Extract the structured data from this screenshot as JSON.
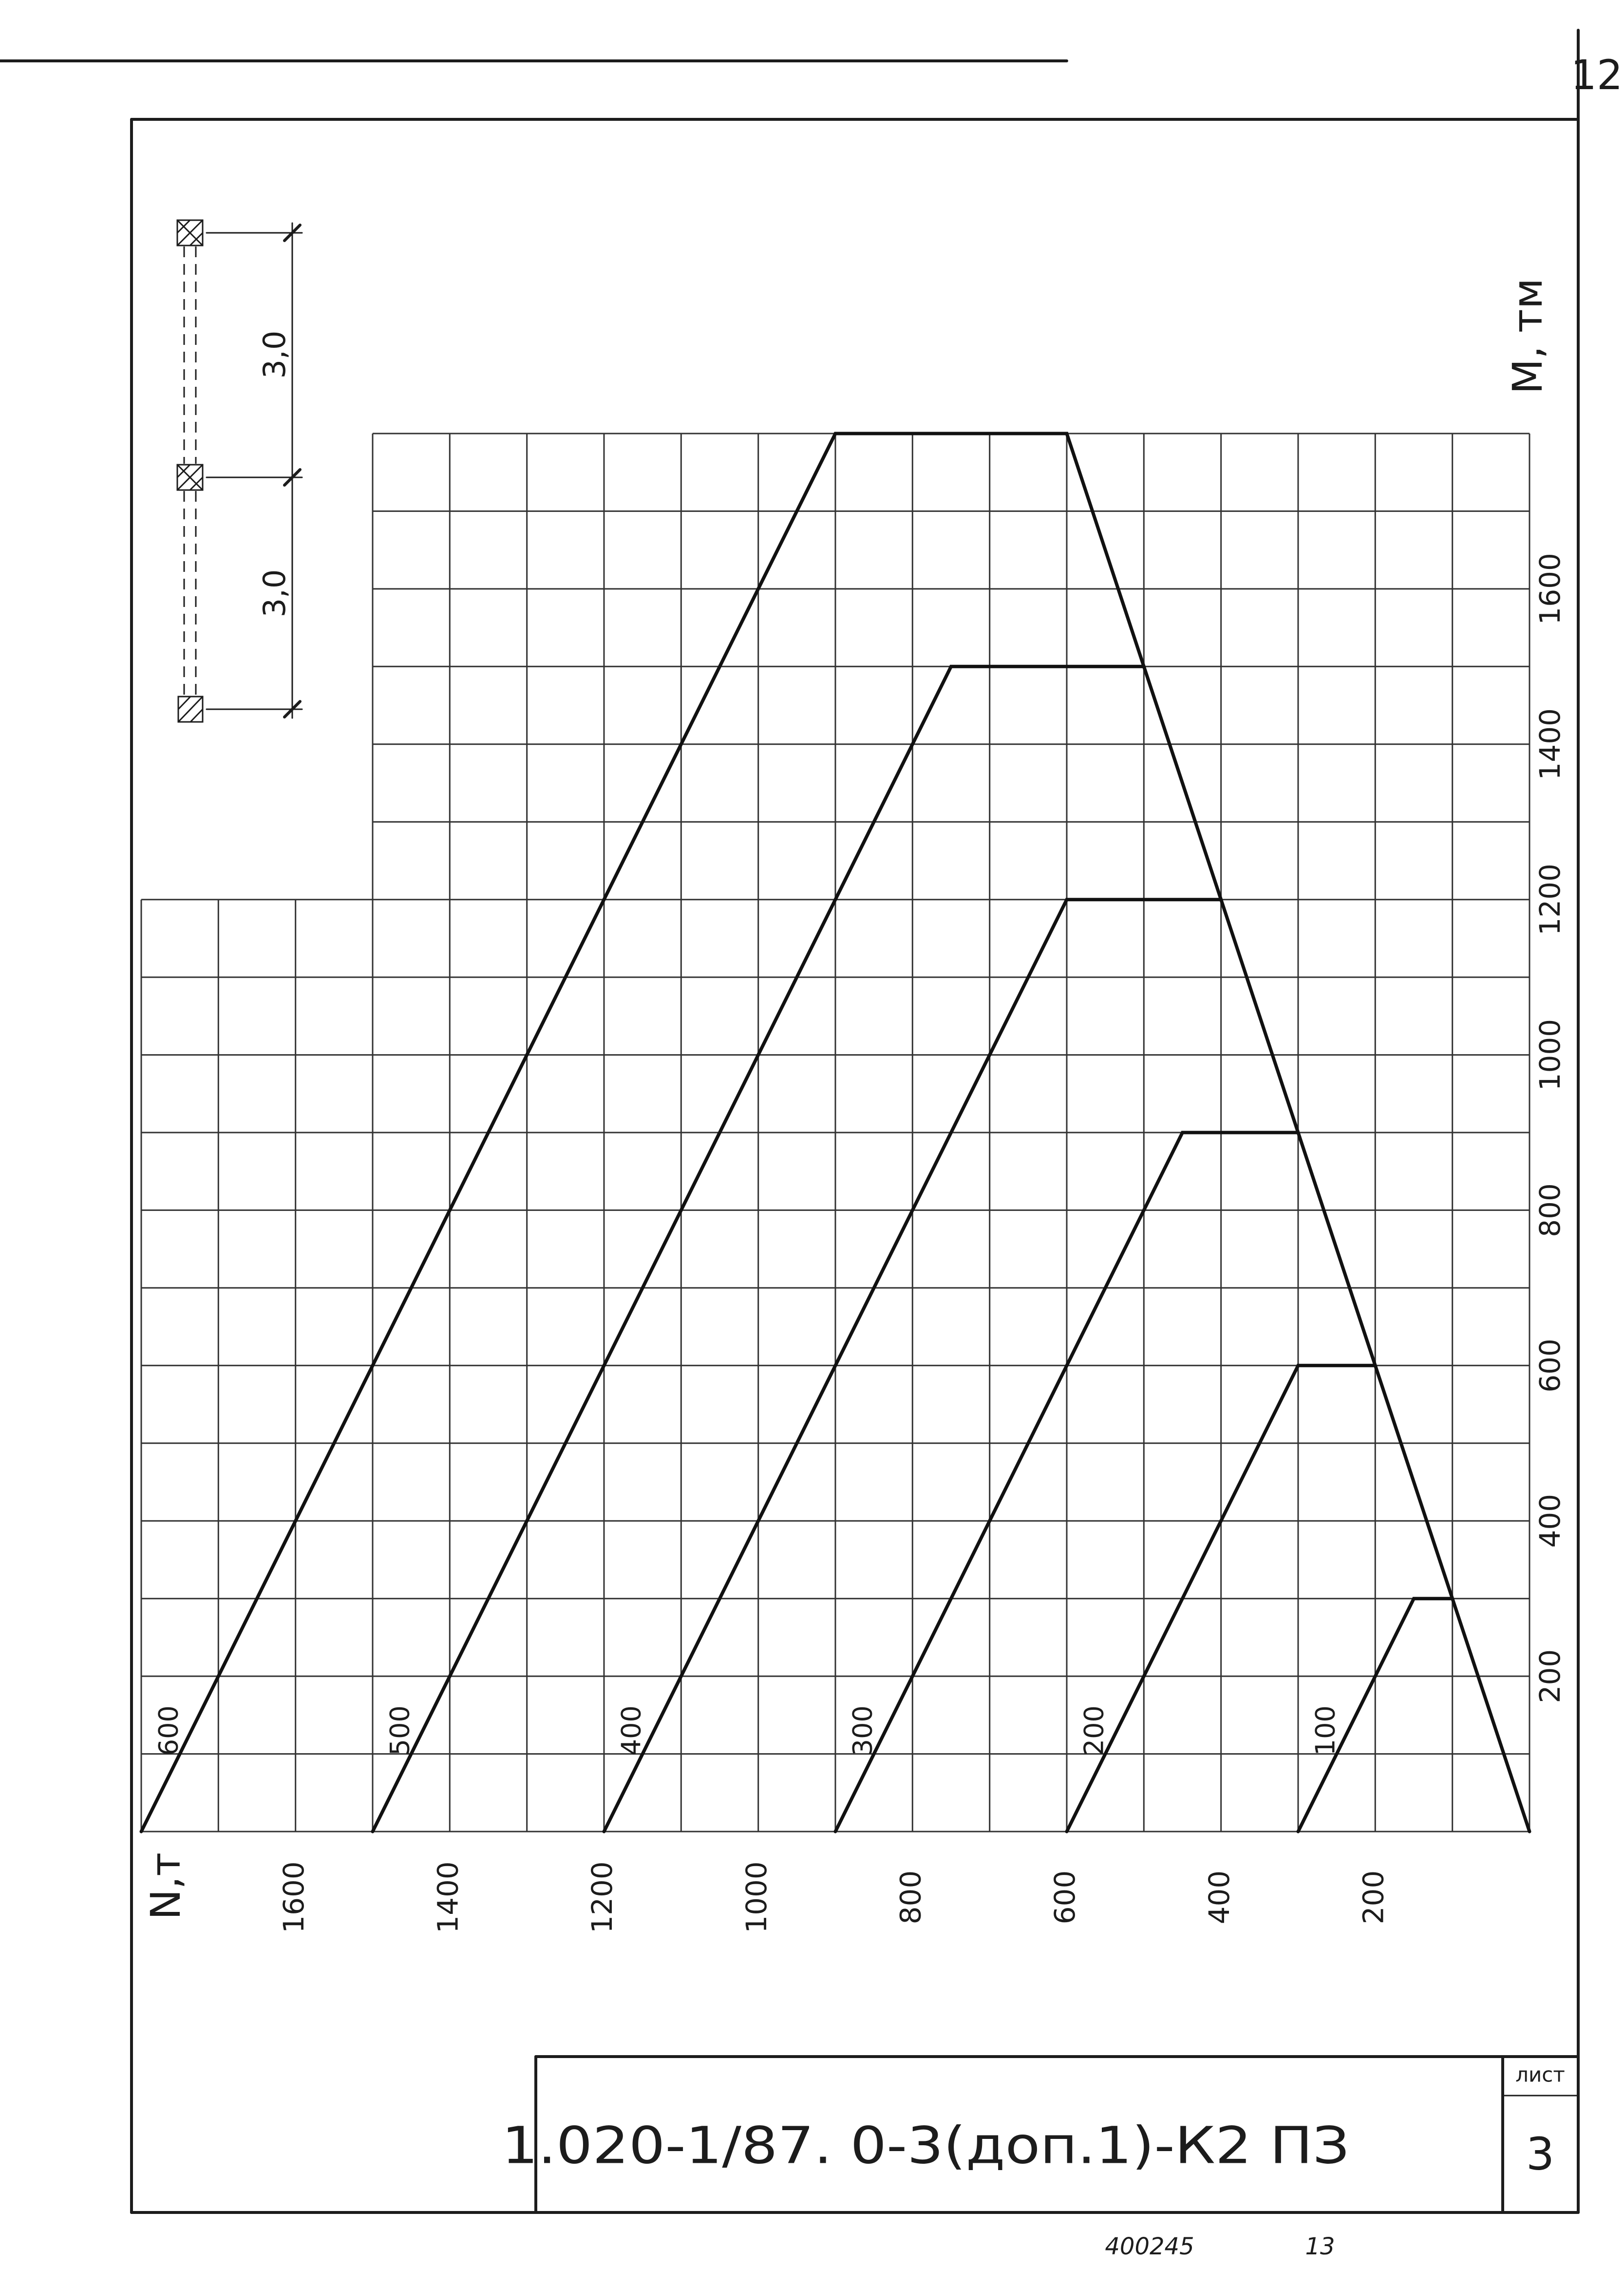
{
  "sheet": {
    "page_number": "12",
    "designation": "1.020-1/87. 0-3(доп.1)-К2 ПЗ",
    "sheet_label": "лист",
    "sheet_number": "3",
    "archive_number": "400245",
    "archive_suffix": "13"
  },
  "scheme": {
    "spacing_labels": [
      "3,0",
      "3,0"
    ]
  },
  "colors": {
    "ink": "#1c1c1c",
    "paper": "#ffffff"
  },
  "chart_data": {
    "type": "line",
    "xlabel": "N,т",
    "ylabel": "M, тм",
    "x_reversed": true,
    "xlim": [
      0,
      1800
    ],
    "ylim": [
      0,
      1800
    ],
    "x_ticks": [
      1600,
      1400,
      1200,
      1000,
      800,
      600,
      400,
      200
    ],
    "y_ticks": [
      200,
      400,
      600,
      800,
      1000,
      1200,
      1400,
      1600
    ],
    "grid": true,
    "grid_step": 100,
    "series": [
      {
        "name": "600",
        "points": [
          [
            1800,
            0
          ],
          [
            900,
            1800
          ],
          [
            600,
            1800
          ],
          [
            0,
            0
          ]
        ]
      },
      {
        "name": "500",
        "points": [
          [
            1500,
            0
          ],
          [
            750,
            1500
          ],
          [
            500,
            1500
          ]
        ]
      },
      {
        "name": "400",
        "points": [
          [
            1200,
            0
          ],
          [
            600,
            1200
          ],
          [
            400,
            1200
          ]
        ]
      },
      {
        "name": "300",
        "points": [
          [
            900,
            0
          ],
          [
            450,
            900
          ],
          [
            300,
            900
          ]
        ]
      },
      {
        "name": "200",
        "points": [
          [
            600,
            0
          ],
          [
            300,
            600
          ],
          [
            200,
            600
          ]
        ]
      },
      {
        "name": "100",
        "points": [
          [
            300,
            0
          ],
          [
            150,
            300
          ],
          [
            100,
            300
          ]
        ]
      }
    ]
  }
}
